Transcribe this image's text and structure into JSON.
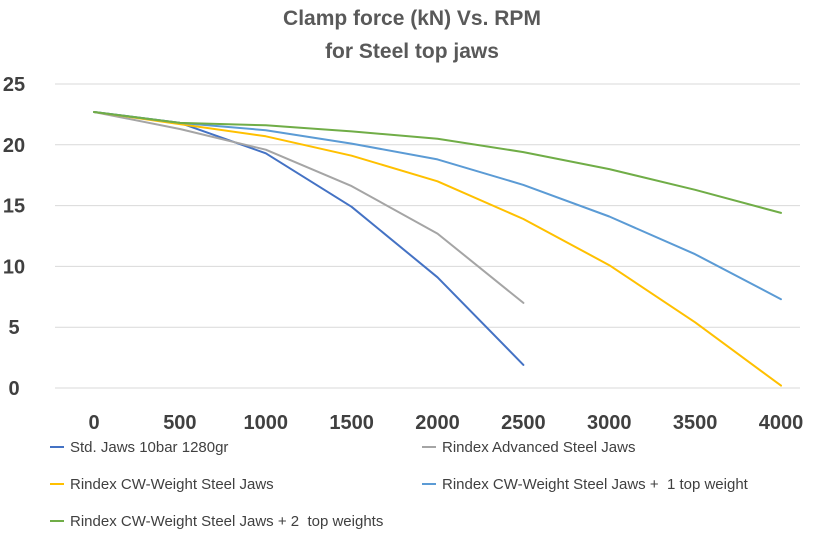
{
  "chart_data": {
    "type": "line",
    "title_lines": [
      "Clamp force (kN) Vs. RPM",
      "for Steel top jaws"
    ],
    "xlabel": "",
    "ylabel": "",
    "xlim": [
      0,
      4000
    ],
    "ylim": [
      0,
      25
    ],
    "x_ticks": [
      0,
      500,
      1000,
      1500,
      2000,
      2500,
      3000,
      3500,
      4000
    ],
    "y_ticks": [
      0,
      5,
      10,
      15,
      20,
      25
    ],
    "grid": "horizontal",
    "legend_position": "bottom",
    "series": [
      {
        "name": "Std. Jaws 10bar 1280gr",
        "color": "#4472C4",
        "points": [
          [
            0,
            22.7
          ],
          [
            500,
            21.8
          ],
          [
            1000,
            19.3
          ],
          [
            1500,
            14.9
          ],
          [
            2000,
            9.1
          ],
          [
            2500,
            1.9
          ]
        ]
      },
      {
        "name": "Rindex Advanced Steel Jaws",
        "color": "#A5A5A5",
        "points": [
          [
            0,
            22.7
          ],
          [
            500,
            21.3
          ],
          [
            1000,
            19.6
          ],
          [
            1500,
            16.6
          ],
          [
            2000,
            12.7
          ],
          [
            2500,
            7.0
          ]
        ]
      },
      {
        "name": "Rindex CW-Weight Steel Jaws",
        "color": "#FFC000",
        "points": [
          [
            0,
            22.7
          ],
          [
            500,
            21.7
          ],
          [
            1000,
            20.7
          ],
          [
            1500,
            19.1
          ],
          [
            2000,
            17.0
          ],
          [
            2500,
            13.9
          ],
          [
            3000,
            10.1
          ],
          [
            3500,
            5.4
          ],
          [
            4000,
            0.2
          ]
        ]
      },
      {
        "name": "Rindex CW-Weight Steel Jaws +  1 top weight",
        "color": "#5B9BD5",
        "points": [
          [
            0,
            22.7
          ],
          [
            500,
            21.8
          ],
          [
            1000,
            21.2
          ],
          [
            1500,
            20.1
          ],
          [
            2000,
            18.8
          ],
          [
            2500,
            16.7
          ],
          [
            3000,
            14.1
          ],
          [
            3500,
            11.0
          ],
          [
            4000,
            7.3
          ]
        ]
      },
      {
        "name": "Rindex CW-Weight Steel Jaws + 2  top weights",
        "color": "#70AD47",
        "points": [
          [
            0,
            22.7
          ],
          [
            500,
            21.8
          ],
          [
            1000,
            21.6
          ],
          [
            1500,
            21.1
          ],
          [
            2000,
            20.5
          ],
          [
            2500,
            19.4
          ],
          [
            3000,
            18.0
          ],
          [
            3500,
            16.3
          ],
          [
            4000,
            14.4
          ]
        ]
      }
    ]
  }
}
